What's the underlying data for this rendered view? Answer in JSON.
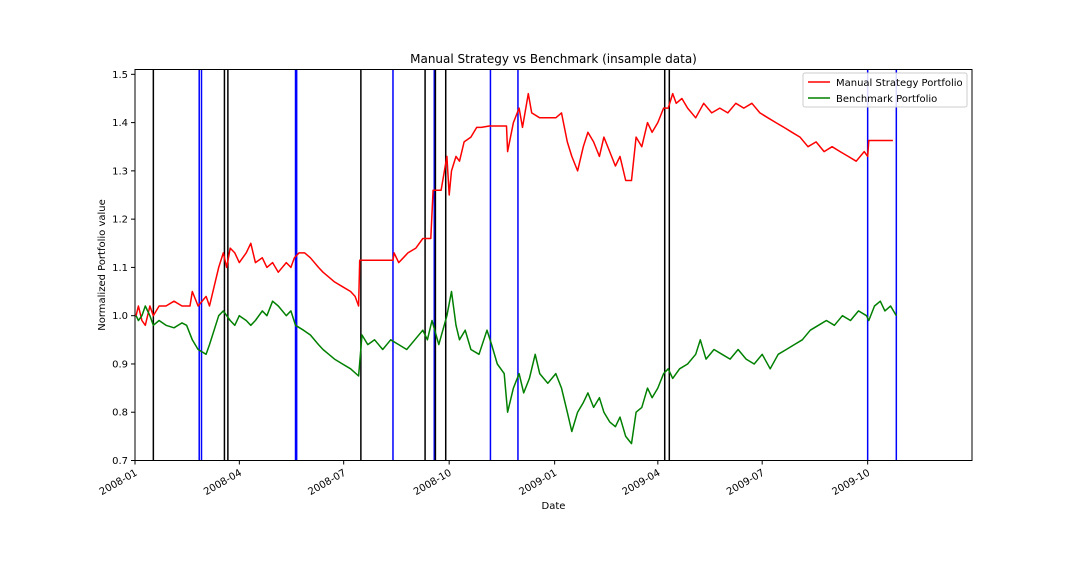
{
  "chart_data": {
    "type": "line",
    "title": "Manual Strategy vs Benchmark (insample data)",
    "xlabel": "Date",
    "ylabel": "Normalized Portfolio value",
    "xlim": [
      "2008-01-01",
      "2009-12-31"
    ],
    "ylim": [
      0.7,
      1.51
    ],
    "x_ticks": [
      "2008-01",
      "2008-04",
      "2008-07",
      "2008-10",
      "2009-01",
      "2009-04",
      "2009-07",
      "2009-10"
    ],
    "y_ticks": [
      "0.7",
      "0.8",
      "0.9",
      "1.0",
      "1.1",
      "1.2",
      "1.3",
      "1.4",
      "1.5"
    ],
    "grid": false,
    "legend": {
      "placement": "top-right",
      "entries": [
        "Manual Strategy Portfolio",
        "Benchmark Portfolio"
      ]
    },
    "series": [
      {
        "name": "Manual Strategy Portfolio",
        "color": "#ff0000",
        "points": [
          [
            "2008-01-02",
            1.0
          ],
          [
            "2008-01-04",
            1.02
          ],
          [
            "2008-01-07",
            0.99
          ],
          [
            "2008-01-10",
            0.98
          ],
          [
            "2008-01-14",
            1.02
          ],
          [
            "2008-01-17",
            1.0
          ],
          [
            "2008-01-22",
            1.02
          ],
          [
            "2008-01-28",
            1.02
          ],
          [
            "2008-02-04",
            1.03
          ],
          [
            "2008-02-11",
            1.02
          ],
          [
            "2008-02-15",
            1.02
          ],
          [
            "2008-02-18",
            1.02
          ],
          [
            "2008-02-20",
            1.05
          ],
          [
            "2008-02-25",
            1.02
          ],
          [
            "2008-03-03",
            1.04
          ],
          [
            "2008-03-06",
            1.02
          ],
          [
            "2008-03-10",
            1.06
          ],
          [
            "2008-03-14",
            1.1
          ],
          [
            "2008-03-18",
            1.13
          ],
          [
            "2008-03-21",
            1.1
          ],
          [
            "2008-03-24",
            1.14
          ],
          [
            "2008-03-28",
            1.13
          ],
          [
            "2008-04-01",
            1.11
          ],
          [
            "2008-04-07",
            1.13
          ],
          [
            "2008-04-11",
            1.15
          ],
          [
            "2008-04-15",
            1.11
          ],
          [
            "2008-04-21",
            1.12
          ],
          [
            "2008-04-25",
            1.1
          ],
          [
            "2008-04-30",
            1.11
          ],
          [
            "2008-05-05",
            1.09
          ],
          [
            "2008-05-12",
            1.11
          ],
          [
            "2008-05-16",
            1.1
          ],
          [
            "2008-05-19",
            1.12
          ],
          [
            "2008-05-23",
            1.13
          ],
          [
            "2008-05-28",
            1.13
          ],
          [
            "2008-06-02",
            1.12
          ],
          [
            "2008-06-09",
            1.1
          ],
          [
            "2008-06-13",
            1.09
          ],
          [
            "2008-06-18",
            1.08
          ],
          [
            "2008-06-23",
            1.07
          ],
          [
            "2008-06-30",
            1.06
          ],
          [
            "2008-07-07",
            1.05
          ],
          [
            "2008-07-11",
            1.04
          ],
          [
            "2008-07-14",
            1.02
          ],
          [
            "2008-07-15",
            1.115
          ],
          [
            "2008-08-13",
            1.115
          ],
          [
            "2008-08-14",
            1.13
          ],
          [
            "2008-08-18",
            1.11
          ],
          [
            "2008-08-22",
            1.12
          ],
          [
            "2008-08-26",
            1.13
          ],
          [
            "2008-09-02",
            1.14
          ],
          [
            "2008-09-08",
            1.16
          ],
          [
            "2008-09-15",
            1.16
          ],
          [
            "2008-09-17",
            1.26
          ],
          [
            "2008-09-24",
            1.26
          ],
          [
            "2008-09-29",
            1.33
          ],
          [
            "2008-10-01",
            1.25
          ],
          [
            "2008-10-03",
            1.3
          ],
          [
            "2008-10-07",
            1.33
          ],
          [
            "2008-10-10",
            1.32
          ],
          [
            "2008-10-14",
            1.36
          ],
          [
            "2008-10-20",
            1.37
          ],
          [
            "2008-10-25",
            1.39
          ],
          [
            "2008-10-29",
            1.39
          ],
          [
            "2008-11-05",
            1.393
          ],
          [
            "2008-11-20",
            1.393
          ],
          [
            "2008-11-21",
            1.34
          ],
          [
            "2008-11-26",
            1.4
          ],
          [
            "2008-12-01",
            1.43
          ],
          [
            "2008-12-04",
            1.39
          ],
          [
            "2008-12-09",
            1.46
          ],
          [
            "2008-12-12",
            1.42
          ],
          [
            "2008-12-19",
            1.41
          ],
          [
            "2008-12-26",
            1.41
          ],
          [
            "2009-01-02",
            1.41
          ],
          [
            "2009-01-07",
            1.42
          ],
          [
            "2009-01-12",
            1.36
          ],
          [
            "2009-01-16",
            1.33
          ],
          [
            "2009-01-21",
            1.3
          ],
          [
            "2009-01-26",
            1.35
          ],
          [
            "2009-01-30",
            1.38
          ],
          [
            "2009-02-04",
            1.36
          ],
          [
            "2009-02-09",
            1.33
          ],
          [
            "2009-02-13",
            1.37
          ],
          [
            "2009-02-18",
            1.34
          ],
          [
            "2009-02-23",
            1.31
          ],
          [
            "2009-02-27",
            1.33
          ],
          [
            "2009-03-04",
            1.28
          ],
          [
            "2009-03-09",
            1.28
          ],
          [
            "2009-03-13",
            1.37
          ],
          [
            "2009-03-18",
            1.35
          ],
          [
            "2009-03-23",
            1.4
          ],
          [
            "2009-03-27",
            1.38
          ],
          [
            "2009-04-01",
            1.4
          ],
          [
            "2009-04-06",
            1.43
          ],
          [
            "2009-04-10",
            1.43
          ],
          [
            "2009-04-14",
            1.46
          ],
          [
            "2009-04-17",
            1.44
          ],
          [
            "2009-04-22",
            1.45
          ],
          [
            "2009-04-27",
            1.43
          ],
          [
            "2009-05-04",
            1.41
          ],
          [
            "2009-05-11",
            1.44
          ],
          [
            "2009-05-18",
            1.42
          ],
          [
            "2009-05-25",
            1.43
          ],
          [
            "2009-06-01",
            1.42
          ],
          [
            "2009-06-08",
            1.44
          ],
          [
            "2009-06-15",
            1.43
          ],
          [
            "2009-06-22",
            1.44
          ],
          [
            "2009-06-29",
            1.42
          ],
          [
            "2009-07-06",
            1.41
          ],
          [
            "2009-07-13",
            1.4
          ],
          [
            "2009-07-20",
            1.39
          ],
          [
            "2009-07-27",
            1.38
          ],
          [
            "2009-08-03",
            1.37
          ],
          [
            "2009-08-10",
            1.35
          ],
          [
            "2009-08-17",
            1.36
          ],
          [
            "2009-08-24",
            1.34
          ],
          [
            "2009-08-31",
            1.35
          ],
          [
            "2009-09-07",
            1.34
          ],
          [
            "2009-09-14",
            1.33
          ],
          [
            "2009-09-21",
            1.32
          ],
          [
            "2009-09-28",
            1.34
          ],
          [
            "2009-10-01",
            1.33
          ],
          [
            "2009-10-02",
            1.363
          ],
          [
            "2009-10-23",
            1.363
          ]
        ]
      },
      {
        "name": "Benchmark Portfolio",
        "color": "#008000",
        "points": [
          [
            "2008-01-02",
            1.0
          ],
          [
            "2008-01-04",
            0.99
          ],
          [
            "2008-01-07",
            1.0
          ],
          [
            "2008-01-10",
            1.02
          ],
          [
            "2008-01-14",
            1.0
          ],
          [
            "2008-01-17",
            0.98
          ],
          [
            "2008-01-22",
            0.99
          ],
          [
            "2008-01-28",
            0.98
          ],
          [
            "2008-02-04",
            0.975
          ],
          [
            "2008-02-11",
            0.985
          ],
          [
            "2008-02-15",
            0.98
          ],
          [
            "2008-02-20",
            0.95
          ],
          [
            "2008-02-25",
            0.93
          ],
          [
            "2008-03-03",
            0.92
          ],
          [
            "2008-03-06",
            0.94
          ],
          [
            "2008-03-10",
            0.97
          ],
          [
            "2008-03-14",
            1.0
          ],
          [
            "2008-03-18",
            1.01
          ],
          [
            "2008-03-24",
            0.99
          ],
          [
            "2008-03-28",
            0.98
          ],
          [
            "2008-04-01",
            1.0
          ],
          [
            "2008-04-07",
            0.99
          ],
          [
            "2008-04-11",
            0.98
          ],
          [
            "2008-04-15",
            0.99
          ],
          [
            "2008-04-21",
            1.01
          ],
          [
            "2008-04-25",
            1.0
          ],
          [
            "2008-04-30",
            1.03
          ],
          [
            "2008-05-05",
            1.02
          ],
          [
            "2008-05-12",
            1.0
          ],
          [
            "2008-05-16",
            1.01
          ],
          [
            "2008-05-20",
            0.98
          ],
          [
            "2008-05-27",
            0.97
          ],
          [
            "2008-06-02",
            0.96
          ],
          [
            "2008-06-09",
            0.94
          ],
          [
            "2008-06-13",
            0.93
          ],
          [
            "2008-06-18",
            0.92
          ],
          [
            "2008-06-23",
            0.91
          ],
          [
            "2008-06-30",
            0.9
          ],
          [
            "2008-07-07",
            0.89
          ],
          [
            "2008-07-14",
            0.875
          ],
          [
            "2008-07-17",
            0.96
          ],
          [
            "2008-07-22",
            0.94
          ],
          [
            "2008-07-28",
            0.95
          ],
          [
            "2008-08-04",
            0.93
          ],
          [
            "2008-08-11",
            0.95
          ],
          [
            "2008-08-18",
            0.94
          ],
          [
            "2008-08-25",
            0.93
          ],
          [
            "2008-09-01",
            0.95
          ],
          [
            "2008-09-08",
            0.97
          ],
          [
            "2008-09-12",
            0.95
          ],
          [
            "2008-09-16",
            0.99
          ],
          [
            "2008-09-22",
            0.94
          ],
          [
            "2008-09-29",
            1.0
          ],
          [
            "2008-10-03",
            1.05
          ],
          [
            "2008-10-07",
            0.98
          ],
          [
            "2008-10-10",
            0.95
          ],
          [
            "2008-10-15",
            0.97
          ],
          [
            "2008-10-20",
            0.93
          ],
          [
            "2008-10-27",
            0.92
          ],
          [
            "2008-11-03",
            0.97
          ],
          [
            "2008-11-07",
            0.94
          ],
          [
            "2008-11-12",
            0.9
          ],
          [
            "2008-11-18",
            0.88
          ],
          [
            "2008-11-21",
            0.8
          ],
          [
            "2008-11-26",
            0.85
          ],
          [
            "2008-12-01",
            0.88
          ],
          [
            "2008-12-05",
            0.84
          ],
          [
            "2008-12-10",
            0.87
          ],
          [
            "2008-12-15",
            0.92
          ],
          [
            "2008-12-19",
            0.88
          ],
          [
            "2008-12-26",
            0.86
          ],
          [
            "2009-01-02",
            0.88
          ],
          [
            "2009-01-07",
            0.85
          ],
          [
            "2009-01-12",
            0.8
          ],
          [
            "2009-01-16",
            0.76
          ],
          [
            "2009-01-21",
            0.8
          ],
          [
            "2009-01-26",
            0.82
          ],
          [
            "2009-01-30",
            0.84
          ],
          [
            "2009-02-04",
            0.81
          ],
          [
            "2009-02-09",
            0.83
          ],
          [
            "2009-02-13",
            0.8
          ],
          [
            "2009-02-18",
            0.78
          ],
          [
            "2009-02-23",
            0.77
          ],
          [
            "2009-02-27",
            0.79
          ],
          [
            "2009-03-04",
            0.75
          ],
          [
            "2009-03-09",
            0.735
          ],
          [
            "2009-03-13",
            0.8
          ],
          [
            "2009-03-18",
            0.81
          ],
          [
            "2009-03-23",
            0.85
          ],
          [
            "2009-03-27",
            0.83
          ],
          [
            "2009-04-01",
            0.85
          ],
          [
            "2009-04-06",
            0.88
          ],
          [
            "2009-04-10",
            0.89
          ],
          [
            "2009-04-14",
            0.87
          ],
          [
            "2009-04-20",
            0.89
          ],
          [
            "2009-04-27",
            0.9
          ],
          [
            "2009-05-04",
            0.92
          ],
          [
            "2009-05-08",
            0.95
          ],
          [
            "2009-05-13",
            0.91
          ],
          [
            "2009-05-20",
            0.93
          ],
          [
            "2009-05-27",
            0.92
          ],
          [
            "2009-06-03",
            0.91
          ],
          [
            "2009-06-10",
            0.93
          ],
          [
            "2009-06-17",
            0.91
          ],
          [
            "2009-06-24",
            0.9
          ],
          [
            "2009-07-01",
            0.92
          ],
          [
            "2009-07-08",
            0.89
          ],
          [
            "2009-07-15",
            0.92
          ],
          [
            "2009-07-22",
            0.93
          ],
          [
            "2009-07-29",
            0.94
          ],
          [
            "2009-08-05",
            0.95
          ],
          [
            "2009-08-12",
            0.97
          ],
          [
            "2009-08-19",
            0.98
          ],
          [
            "2009-08-26",
            0.99
          ],
          [
            "2009-09-02",
            0.98
          ],
          [
            "2009-09-09",
            1.0
          ],
          [
            "2009-09-16",
            0.99
          ],
          [
            "2009-09-23",
            1.01
          ],
          [
            "2009-09-30",
            1.0
          ],
          [
            "2009-10-02",
            0.99
          ],
          [
            "2009-10-07",
            1.02
          ],
          [
            "2009-10-12",
            1.03
          ],
          [
            "2009-10-16",
            1.01
          ],
          [
            "2009-10-21",
            1.02
          ],
          [
            "2009-10-26",
            1.0
          ]
        ]
      }
    ],
    "vlines": [
      {
        "date": "2008-01-17",
        "color": "#000000"
      },
      {
        "date": "2008-02-26",
        "color": "#0000ff"
      },
      {
        "date": "2008-02-28",
        "color": "#0000ff"
      },
      {
        "date": "2008-03-19",
        "color": "#000000"
      },
      {
        "date": "2008-03-22",
        "color": "#000000"
      },
      {
        "date": "2008-05-20",
        "color": "#0000ff"
      },
      {
        "date": "2008-05-21",
        "color": "#0000ff"
      },
      {
        "date": "2008-07-16",
        "color": "#000000"
      },
      {
        "date": "2008-08-13",
        "color": "#0000ff"
      },
      {
        "date": "2008-09-10",
        "color": "#000000"
      },
      {
        "date": "2008-09-18",
        "color": "#0000ff"
      },
      {
        "date": "2008-09-19",
        "color": "#000000"
      },
      {
        "date": "2008-09-28",
        "color": "#000000"
      },
      {
        "date": "2008-11-06",
        "color": "#0000ff"
      },
      {
        "date": "2008-11-30",
        "color": "#0000ff"
      },
      {
        "date": "2009-04-07",
        "color": "#000000"
      },
      {
        "date": "2009-04-11",
        "color": "#000000"
      },
      {
        "date": "2009-10-01",
        "color": "#0000ff"
      },
      {
        "date": "2009-10-26",
        "color": "#0000ff"
      }
    ]
  }
}
